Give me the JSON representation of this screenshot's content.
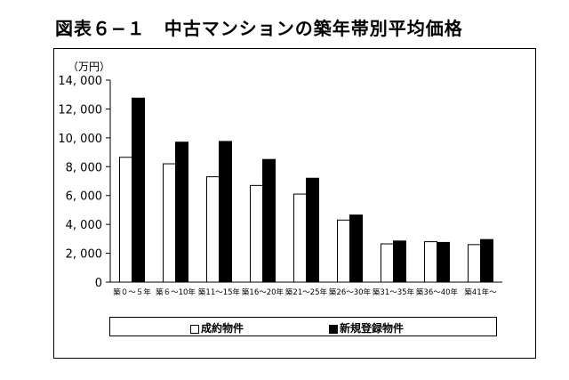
{
  "title": "図表６−１　中古マンションの築年帯別平均価格",
  "colors": {
    "series0_fill": "#ffffff",
    "series1_fill": "#000000",
    "stroke": "#000000"
  },
  "chart_data": {
    "type": "bar",
    "unit_label": "（万円）",
    "categories": [
      "築０～５年",
      "築６～10年",
      "築11～15年",
      "築16～20年",
      "築21～25年",
      "築26～30年",
      "築31～35年",
      "築36～40年",
      "築41年～"
    ],
    "series": [
      {
        "name": "成約物件",
        "values": [
          8650,
          8200,
          7300,
          6700,
          6100,
          4300,
          2650,
          2800,
          2600
        ]
      },
      {
        "name": "新規登録物件",
        "values": [
          12750,
          9700,
          9750,
          8500,
          7200,
          4650,
          2850,
          2750,
          2950
        ]
      }
    ],
    "ylim": [
      0,
      14000
    ],
    "yticks": [
      0,
      2000,
      4000,
      6000,
      8000,
      10000,
      12000,
      14000
    ],
    "ytick_labels": [
      "0",
      "2, 000",
      "4, 000",
      "6, 000",
      "8, 000",
      "10, 000",
      "12, 000",
      "14, 000"
    ],
    "grid": false,
    "legend_position": "bottom"
  }
}
